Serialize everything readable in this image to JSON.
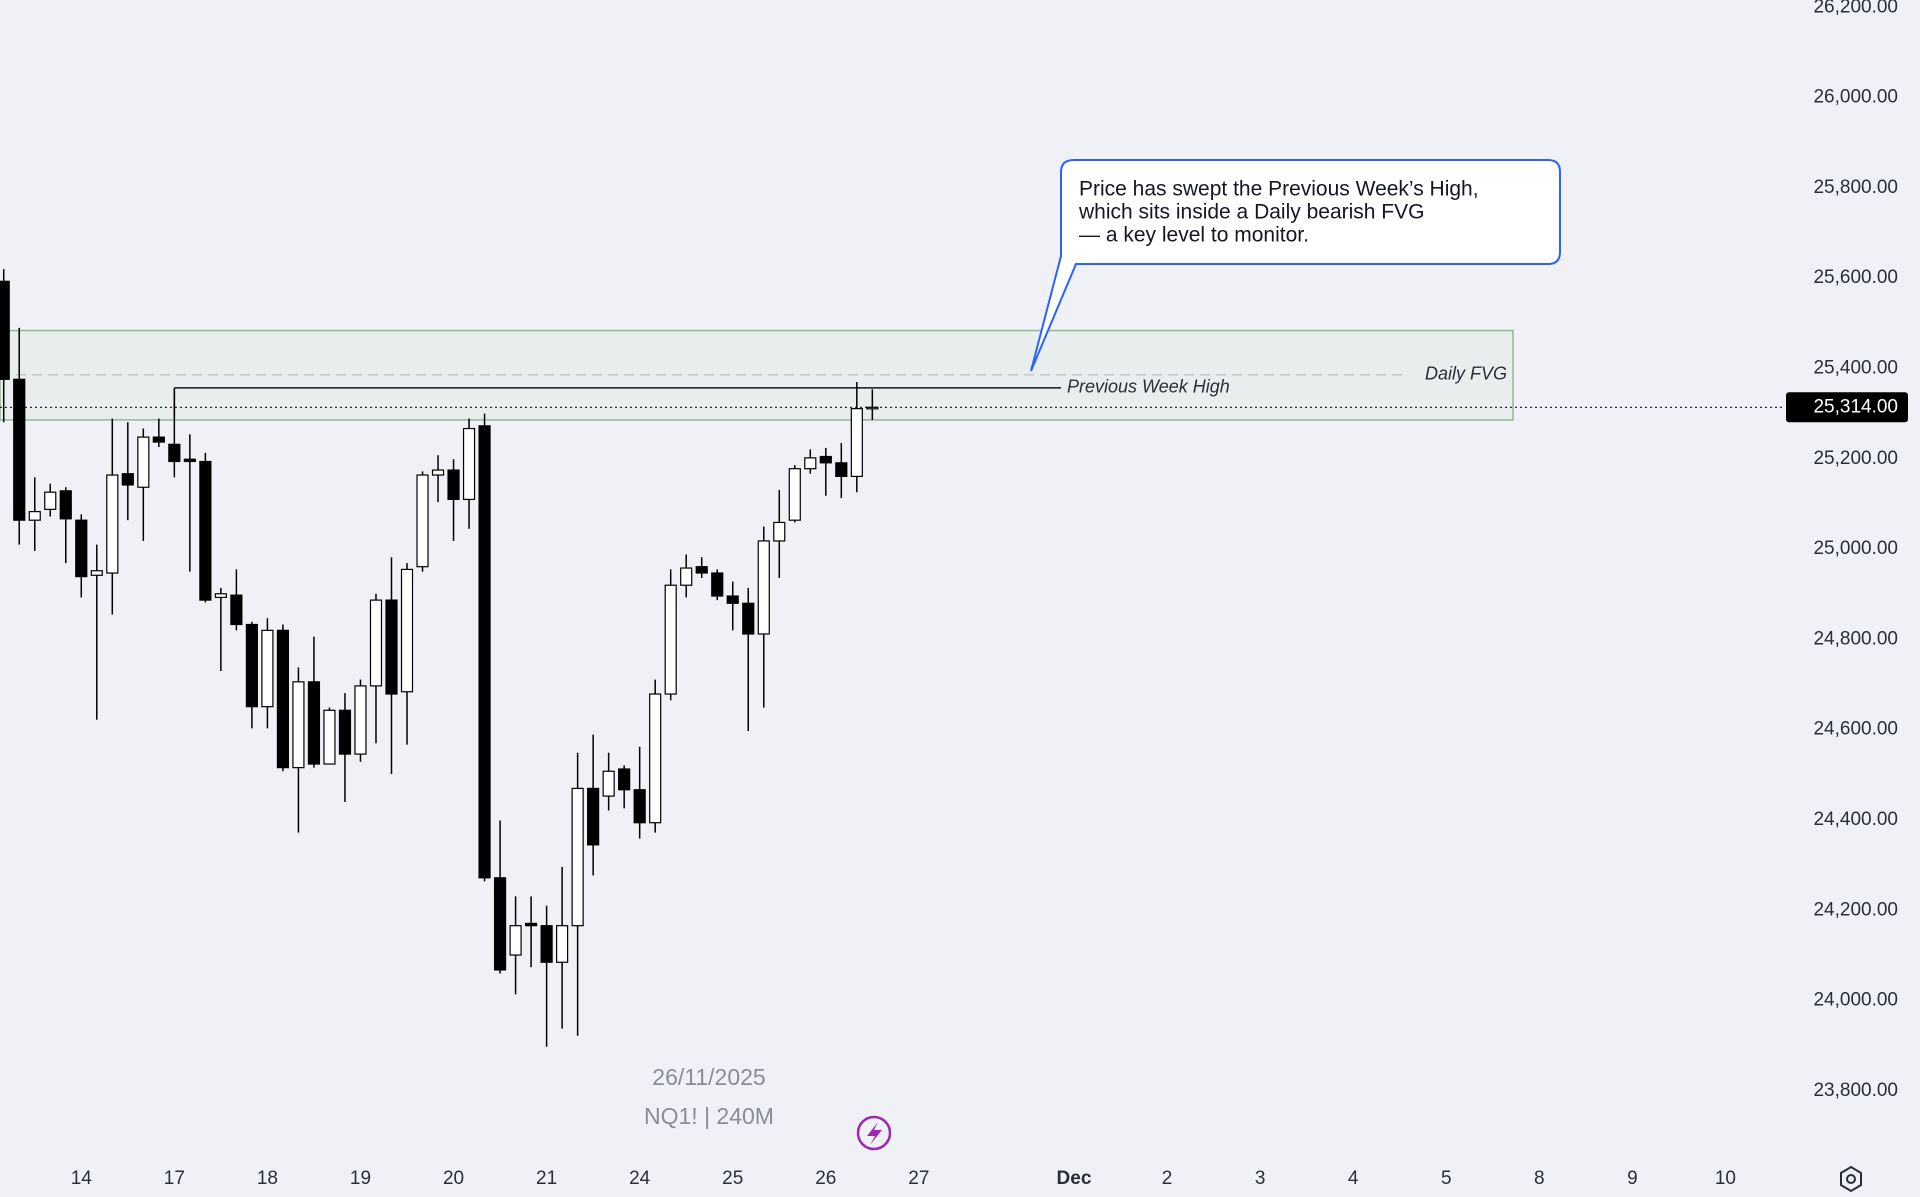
{
  "chart_data": {
    "type": "candlestick",
    "colors": {
      "up": "#ffffff",
      "down": "#000000",
      "wick": "#000000"
    },
    "open": [
      25593,
      25376,
      25064,
      25088,
      25129,
      25064,
      24942,
      24947,
      25167,
      25137,
      25248,
      25232,
      25199,
      25194,
      24893,
      24898,
      24833,
      24651,
      24820,
      24516,
      24706,
      24524,
      24643,
      24546,
      24697,
      24887,
      24684,
      24961,
      25164,
      25175,
      25110,
      25273,
      24272,
      24101,
      24171,
      24166,
      24085,
      24166,
      24470,
      24453,
      24513,
      24467,
      24394,
      24679,
      24920,
      24961,
      24947,
      24896,
      24880,
      24812,
      25018,
      25064,
      25178,
      25205,
      25191,
      25161,
      25311
    ],
    "high": [
      25620,
      25490,
      25159,
      25145,
      25137,
      25077,
      25010,
      25289,
      25281,
      25267,
      25289,
      25354,
      25254,
      25213,
      24914,
      24955,
      24839,
      24847,
      24833,
      24738,
      24806,
      24649,
      24681,
      24711,
      24901,
      24982,
      24969,
      25172,
      25208,
      25199,
      25289,
      25300,
      24399,
      24231,
      24231,
      24210,
      24296,
      24549,
      24589,
      24549,
      24521,
      24562,
      24711,
      24955,
      24988,
      24982,
      24955,
      24928,
      24914,
      25050,
      25131,
      25186,
      25221,
      25224,
      25235,
      25370,
      25354
    ],
    "low": [
      25281,
      25010,
      24996,
      25072,
      24969,
      24893,
      24622,
      24855,
      25064,
      25018,
      25226,
      25159,
      24950,
      24882,
      24730,
      24820,
      24603,
      24603,
      24508,
      24372,
      24516,
      24529,
      24440,
      24529,
      24570,
      24502,
      24567,
      24950,
      25104,
      25018,
      25045,
      24264,
      24060,
      24014,
      24074,
      23898,
      23938,
      23922,
      24277,
      24421,
      24426,
      24359,
      24372,
      24665,
      24893,
      24936,
      24887,
      24820,
      24597,
      24649,
      24936,
      25059,
      25167,
      25118,
      25113,
      25126,
      25286
    ],
    "close": [
      25376,
      25064,
      25083,
      25126,
      25067,
      24939,
      24952,
      25164,
      25142,
      25248,
      25237,
      25194,
      25194,
      24887,
      24901,
      24833,
      24651,
      24820,
      24516,
      24706,
      24524,
      24643,
      24546,
      24697,
      24887,
      24679,
      24955,
      25164,
      25175,
      25110,
      25267,
      24272,
      24068,
      24166,
      24166,
      24085,
      24166,
      24470,
      24345,
      24508,
      24467,
      24394,
      24679,
      24920,
      24958,
      24947,
      24896,
      24880,
      24812,
      25018,
      25059,
      25178,
      25202,
      25191,
      25161,
      25311,
      25314
    ],
    "ylim": [
      23667,
      26216
    ],
    "yticks": [
      {
        "value": 23800,
        "label": "23,800.00"
      },
      {
        "value": 24000,
        "label": "24,000.00"
      },
      {
        "value": 24200,
        "label": "24,200.00"
      },
      {
        "value": 24400,
        "label": "24,400.00"
      },
      {
        "value": 24600,
        "label": "24,600.00"
      },
      {
        "value": 24800,
        "label": "24,800.00"
      },
      {
        "value": 25000,
        "label": "25,000.00"
      },
      {
        "value": 25200,
        "label": "25,200.00"
      },
      {
        "value": 25400,
        "label": "25,400.00"
      },
      {
        "value": 25600,
        "label": "25,600.00"
      },
      {
        "value": 25800,
        "label": "25,800.00"
      },
      {
        "value": 26000,
        "label": "26,000.00"
      },
      {
        "value": 26200,
        "label": "26,200.00"
      }
    ],
    "xlim": [
      -0.24,
      114.84
    ],
    "xticks": [
      {
        "value": 5,
        "label": "14"
      },
      {
        "value": 11,
        "label": "17"
      },
      {
        "value": 17,
        "label": "18"
      },
      {
        "value": 23,
        "label": "19"
      },
      {
        "value": 29,
        "label": "20"
      },
      {
        "value": 35,
        "label": "21"
      },
      {
        "value": 41,
        "label": "24"
      },
      {
        "value": 47,
        "label": "25"
      },
      {
        "value": 53,
        "label": "26"
      },
      {
        "value": 59,
        "label": "27"
      },
      {
        "value": 69,
        "label": "Dec"
      },
      {
        "value": 75,
        "label": "2"
      },
      {
        "value": 81,
        "label": "3"
      },
      {
        "value": 87,
        "label": "4"
      },
      {
        "value": 93,
        "label": "5"
      },
      {
        "value": 99,
        "label": "8"
      },
      {
        "value": 105,
        "label": "9"
      },
      {
        "value": 111,
        "label": "10"
      }
    ],
    "grid": false,
    "annotations": {
      "callout": [
        "Price has swept the Previous Week’s High,",
        "which sits inside a Daily bearish FVG",
        "— a key level to monitor."
      ],
      "previous_week_high": {
        "label": "Previous Week High",
        "value": 25357
      },
      "fvg": {
        "label": "Daily FVG",
        "low": 25286,
        "high": 25484,
        "mid": 25386
      },
      "last_price": {
        "value": 25314,
        "label": "25,314.00"
      },
      "date": "26/11/2025",
      "symbol": "NQ1! | 240M"
    }
  }
}
